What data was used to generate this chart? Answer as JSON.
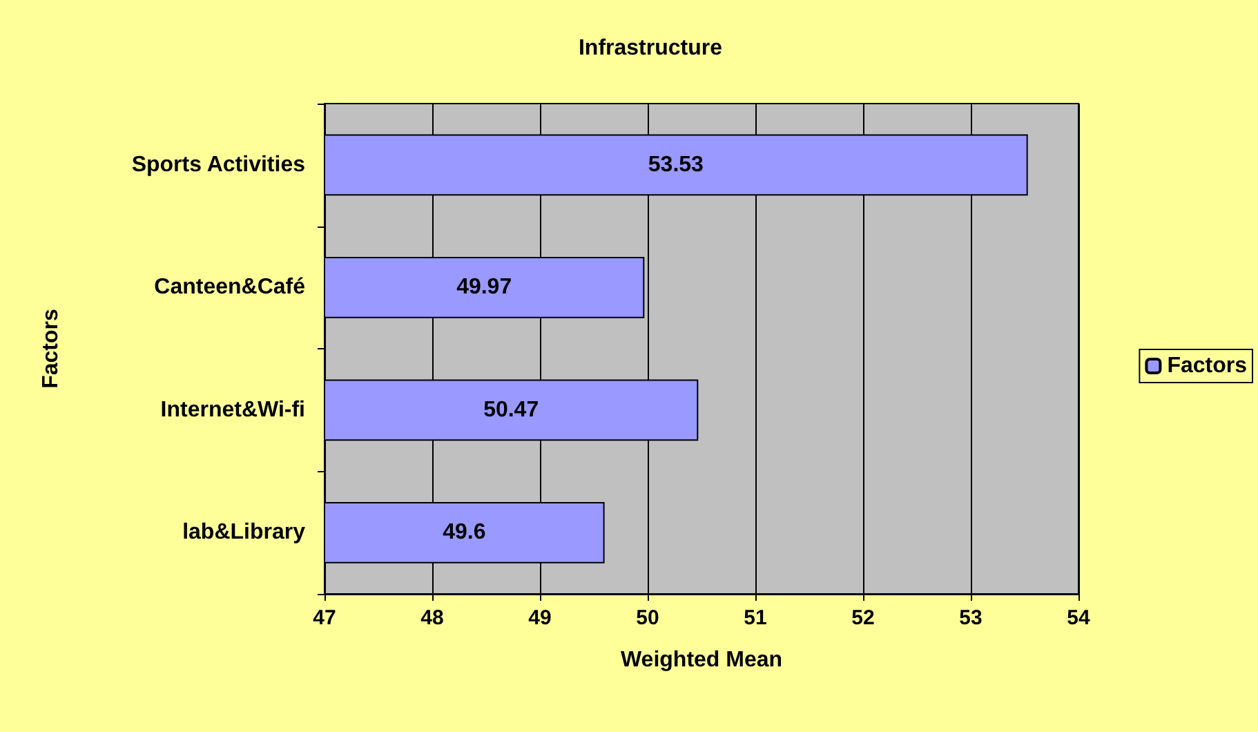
{
  "chart_data": {
    "type": "bar",
    "orientation": "horizontal",
    "title": "Infrastructure",
    "xlabel": "Weighted Mean",
    "ylabel": "Factors",
    "categories": [
      "Sports Activities",
      "Canteen&Café",
      "Internet&Wi-fi",
      "lab&Library"
    ],
    "series": [
      {
        "name": "Factors",
        "color": "#9999ff",
        "values": [
          53.53,
          49.97,
          50.47,
          49.6
        ]
      }
    ],
    "xlim": [
      47,
      54
    ],
    "xticks": [
      47,
      48,
      49,
      50,
      51,
      52,
      53,
      54
    ],
    "grid": "x",
    "legend": "right",
    "data_labels": true
  }
}
